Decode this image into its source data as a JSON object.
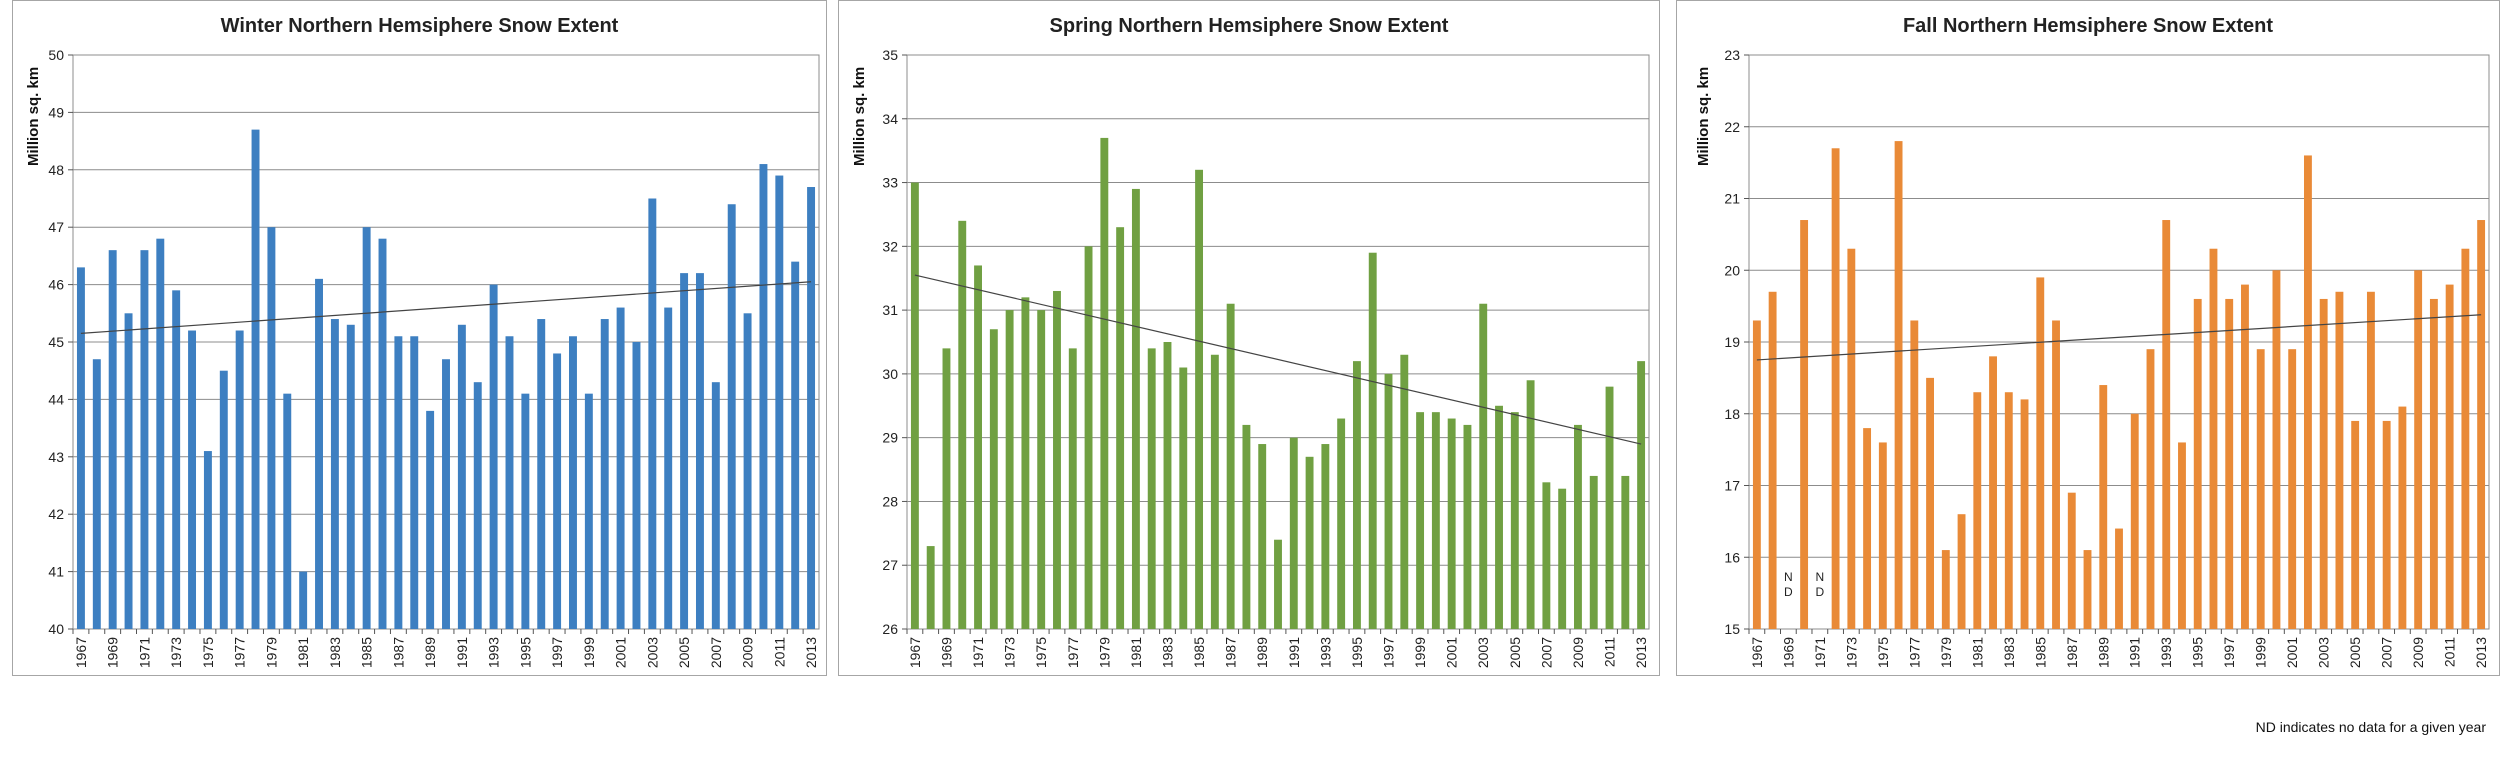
{
  "footnote": "ND indicates no data for a given year",
  "chart_data": [
    {
      "type": "bar",
      "title": "Winter Northern Hemsiphere Snow Extent",
      "ylabel": "Million sq. km",
      "xlabel": "",
      "ylim": [
        40,
        50
      ],
      "yticks": [
        40,
        41,
        42,
        43,
        44,
        45,
        46,
        47,
        48,
        49,
        50
      ],
      "x": [
        1967,
        1968,
        1969,
        1970,
        1971,
        1972,
        1973,
        1974,
        1975,
        1976,
        1977,
        1978,
        1979,
        1980,
        1981,
        1982,
        1983,
        1984,
        1985,
        1986,
        1987,
        1988,
        1989,
        1990,
        1991,
        1992,
        1993,
        1994,
        1995,
        1996,
        1997,
        1998,
        1999,
        2000,
        2001,
        2002,
        2003,
        2004,
        2005,
        2006,
        2007,
        2008,
        2009,
        2010,
        2011,
        2012,
        2013
      ],
      "xtick_labels": [
        "1967",
        "1969",
        "1971",
        "1973",
        "1975",
        "1977",
        "1979",
        "1981",
        "1983",
        "1985",
        "1987",
        "1989",
        "1991",
        "1993",
        "1995",
        "1997",
        "1999",
        "2001",
        "2003",
        "2005",
        "2007",
        "2009",
        "2011",
        "2013"
      ],
      "values": [
        46.3,
        44.7,
        46.6,
        45.5,
        46.6,
        46.8,
        45.9,
        45.2,
        43.1,
        44.5,
        45.2,
        48.7,
        47.0,
        44.1,
        41.0,
        46.1,
        45.4,
        45.3,
        47.0,
        46.8,
        45.1,
        45.1,
        43.8,
        44.7,
        45.3,
        44.3,
        46.0,
        45.1,
        44.1,
        45.4,
        44.8,
        45.1,
        44.1,
        45.4,
        45.6,
        45.0,
        47.5,
        45.6,
        46.2,
        46.2,
        44.3,
        47.4,
        45.5,
        48.1,
        47.9,
        46.4,
        47.7
      ],
      "trend": [
        45.15,
        46.05
      ],
      "color": "#3d7fc1",
      "nd_years": []
    },
    {
      "type": "bar",
      "title": "Spring Northern Hemsiphere Snow Extent",
      "ylabel": "Million sq. km",
      "xlabel": "",
      "ylim": [
        26,
        35
      ],
      "yticks": [
        26,
        27,
        28,
        29,
        30,
        31,
        32,
        33,
        34,
        35
      ],
      "x": [
        1967,
        1968,
        1969,
        1970,
        1971,
        1972,
        1973,
        1974,
        1975,
        1976,
        1977,
        1978,
        1979,
        1980,
        1981,
        1982,
        1983,
        1984,
        1985,
        1986,
        1987,
        1988,
        1989,
        1990,
        1991,
        1992,
        1993,
        1994,
        1995,
        1996,
        1997,
        1998,
        1999,
        2000,
        2001,
        2002,
        2003,
        2004,
        2005,
        2006,
        2007,
        2008,
        2009,
        2010,
        2011,
        2012,
        2013
      ],
      "xtick_labels": [
        "1967",
        "1969",
        "1971",
        "1973",
        "1975",
        "1977",
        "1979",
        "1981",
        "1983",
        "1985",
        "1987",
        "1989",
        "1991",
        "1993",
        "1995",
        "1997",
        "1999",
        "2001",
        "2003",
        "2005",
        "2007",
        "2009",
        "2011",
        "2013"
      ],
      "values": [
        33.0,
        27.3,
        30.4,
        32.4,
        31.7,
        30.7,
        31.0,
        31.2,
        31.0,
        31.3,
        30.4,
        32.0,
        33.7,
        32.3,
        32.9,
        30.4,
        30.5,
        30.1,
        33.2,
        30.3,
        31.1,
        29.2,
        28.9,
        27.4,
        29.0,
        28.7,
        28.9,
        29.3,
        30.2,
        31.9,
        30.0,
        30.3,
        29.4,
        29.4,
        29.3,
        29.2,
        31.1,
        29.5,
        29.4,
        29.9,
        28.3,
        28.2,
        29.2,
        28.4,
        29.8,
        28.4,
        30.2
      ],
      "trend": [
        31.55,
        28.9
      ],
      "color": "#70a042",
      "nd_years": []
    },
    {
      "type": "bar",
      "title": "Fall Northern Hemsiphere Snow Extent",
      "ylabel": "Million sq. km",
      "xlabel": "",
      "ylim": [
        15,
        23
      ],
      "yticks": [
        15,
        16,
        17,
        18,
        19,
        20,
        21,
        22,
        23
      ],
      "x": [
        1967,
        1968,
        1969,
        1970,
        1971,
        1972,
        1973,
        1974,
        1975,
        1976,
        1977,
        1978,
        1979,
        1980,
        1981,
        1982,
        1983,
        1984,
        1985,
        1986,
        1987,
        1988,
        1989,
        1990,
        1991,
        1992,
        1993,
        1994,
        1995,
        1996,
        1997,
        1998,
        1999,
        2000,
        2001,
        2002,
        2003,
        2004,
        2005,
        2006,
        2007,
        2008,
        2009,
        2010,
        2011,
        2012,
        2013
      ],
      "xtick_labels": [
        "1967",
        "1969",
        "1971",
        "1973",
        "1975",
        "1977",
        "1979",
        "1981",
        "1983",
        "1985",
        "1987",
        "1989",
        "1991",
        "1993",
        "1995",
        "1997",
        "1999",
        "2001",
        "2003",
        "2005",
        "2007",
        "2009",
        "2011",
        "2013"
      ],
      "values": [
        19.3,
        19.7,
        null,
        20.7,
        null,
        21.7,
        20.3,
        17.8,
        17.6,
        21.8,
        19.3,
        18.5,
        16.1,
        16.6,
        18.3,
        18.8,
        18.3,
        18.2,
        19.9,
        19.3,
        16.9,
        16.1,
        18.4,
        16.4,
        18.0,
        18.9,
        20.7,
        17.6,
        19.6,
        20.3,
        19.6,
        19.8,
        18.9,
        20.0,
        18.9,
        21.6,
        19.6,
        19.7,
        17.9,
        19.7,
        17.9,
        18.1,
        20.0,
        19.6,
        19.8,
        20.3,
        20.7
      ],
      "trend": [
        18.75,
        19.38
      ],
      "color": "#e98a37",
      "nd_years": [
        1969,
        1971
      ],
      "nd_label": "N\nD"
    }
  ]
}
